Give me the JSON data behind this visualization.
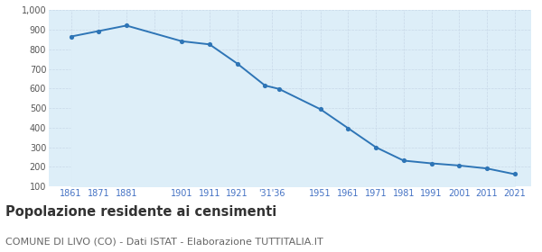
{
  "years": [
    1861,
    1871,
    1881,
    1901,
    1911,
    1921,
    1931,
    1936,
    1951,
    1961,
    1971,
    1981,
    1991,
    2001,
    2011,
    2021
  ],
  "population": [
    865,
    893,
    921,
    841,
    825,
    727,
    615,
    598,
    494,
    397,
    300,
    232,
    218,
    207,
    192,
    163
  ],
  "x_labels": [
    "1861",
    "1871",
    "1881",
    "",
    "1901",
    "1911",
    "1921",
    "'31'36",
    "",
    "1951",
    "1961",
    "1971",
    "1981",
    "1991",
    "2001",
    "2011",
    "2021"
  ],
  "x_tick_positions": [
    1861,
    1871,
    1881,
    1891,
    1901,
    1911,
    1921,
    1933.5,
    1944,
    1951,
    1961,
    1971,
    1981,
    1991,
    2001,
    2011,
    2021
  ],
  "line_color": "#2e75b6",
  "fill_color": "#ddeef8",
  "marker_color": "#2e75b6",
  "background_color": "#ffffff",
  "grid_color": "#c8d8e8",
  "ylim_min": 100,
  "ylim_max": 1000,
  "ytick_vals": [
    100,
    200,
    300,
    400,
    500,
    600,
    700,
    800,
    900,
    1000
  ],
  "title": "Popolazione residente ai censimenti",
  "subtitle": "COMUNE DI LIVO (CO) - Dati ISTAT - Elaborazione TUTTITALIA.IT",
  "title_fontsize": 10.5,
  "subtitle_fontsize": 8,
  "axis_tick_color": "#4472c4",
  "ytick_color": "#555555"
}
